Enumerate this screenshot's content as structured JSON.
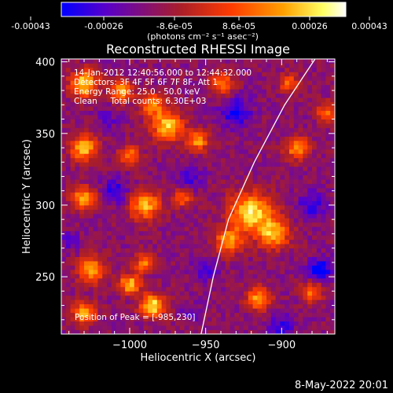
{
  "title": "Reconstructed RHESSI Image",
  "footer_date": "8-May-2022 20:01",
  "info_lines": [
    "14-Jan-2012 12:40:56.000 to 12:44:32.000",
    "Detectors: 3F 4F 5F 6F 7F 8F, Att 1",
    "Energy Range: 25.0 - 50.0 keV",
    "Clean     Total counts: 6.30E+03"
  ],
  "peak_label": "Position of Peak = [-985,230]",
  "colorbar": {
    "ticks": [
      "-0.00043",
      "-0.00026",
      "-8.6e-05",
      "8.6e-05",
      "0.00026",
      "0.00043"
    ],
    "unit_label": "(photons cm⁻² s⁻¹ asec⁻²)",
    "colors": [
      "#0000ff",
      "#5a00c8",
      "#aa1e28",
      "#ff3c00",
      "#ffa000",
      "#ffff64",
      "#ffffff"
    ]
  },
  "chart_data": {
    "type": "heatmap",
    "title": "Reconstructed RHESSI Image",
    "xlabel": "Heliocentric X (arcsec)",
    "ylabel": "Heliocentric Y (arcsec)",
    "xlim": [
      -1045,
      -865
    ],
    "ylim": [
      210,
      402
    ],
    "zlim": [
      -0.00043,
      0.00043
    ],
    "xticks": [
      -1000,
      -950,
      -900
    ],
    "xticklabels": [
      "−1000",
      "−950",
      "−900"
    ],
    "yticks": [
      250,
      300,
      350,
      400
    ],
    "yticklabels": [
      "250",
      "300",
      "350",
      "400"
    ],
    "grid_size": [
      60,
      64
    ],
    "grid_cell_arcsec": 3,
    "peak": [
      -985,
      230
    ],
    "limb_curve": [
      [
        -953,
        210
      ],
      [
        -945,
        250
      ],
      [
        -935,
        290
      ],
      [
        -918,
        330
      ],
      [
        -898,
        370
      ],
      [
        -878,
        402
      ]
    ],
    "hot_spots": [
      {
        "x": -1030,
        "y": 385,
        "z": 0.0004,
        "r": 9
      },
      {
        "x": -1005,
        "y": 380,
        "z": 0.0003,
        "r": 7
      },
      {
        "x": -985,
        "y": 370,
        "z": 0.00026,
        "r": 8
      },
      {
        "x": -975,
        "y": 355,
        "z": 0.00038,
        "r": 10
      },
      {
        "x": -1030,
        "y": 340,
        "z": 0.00034,
        "r": 9
      },
      {
        "x": -1000,
        "y": 335,
        "z": 0.00022,
        "r": 7
      },
      {
        "x": -955,
        "y": 345,
        "z": 0.00028,
        "r": 7
      },
      {
        "x": -1030,
        "y": 305,
        "z": 0.0003,
        "r": 8
      },
      {
        "x": -990,
        "y": 300,
        "z": 0.00032,
        "r": 10
      },
      {
        "x": -965,
        "y": 305,
        "z": 0.0002,
        "r": 6
      },
      {
        "x": -920,
        "y": 295,
        "z": 0.0004,
        "r": 14
      },
      {
        "x": -905,
        "y": 280,
        "z": 0.00032,
        "r": 10
      },
      {
        "x": -935,
        "y": 275,
        "z": 0.00028,
        "r": 9
      },
      {
        "x": -1025,
        "y": 255,
        "z": 0.0003,
        "r": 9
      },
      {
        "x": -990,
        "y": 260,
        "z": 0.00022,
        "r": 7
      },
      {
        "x": -1000,
        "y": 245,
        "z": 0.00034,
        "r": 7
      },
      {
        "x": -985,
        "y": 230,
        "z": 0.00043,
        "r": 8
      },
      {
        "x": -1030,
        "y": 225,
        "z": 0.0003,
        "r": 8
      },
      {
        "x": -915,
        "y": 235,
        "z": 0.0003,
        "r": 8
      },
      {
        "x": -880,
        "y": 240,
        "z": 0.00022,
        "r": 7
      },
      {
        "x": -890,
        "y": 340,
        "z": 0.00026,
        "r": 8
      },
      {
        "x": -870,
        "y": 365,
        "z": 0.0002,
        "r": 7
      },
      {
        "x": -895,
        "y": 385,
        "z": 0.00018,
        "r": 7
      },
      {
        "x": -940,
        "y": 385,
        "z": 0.00024,
        "r": 8
      }
    ],
    "cold_spots": [
      {
        "x": -1010,
        "y": 310,
        "z": -0.0003,
        "r": 9
      },
      {
        "x": -960,
        "y": 320,
        "z": -0.00026,
        "r": 8
      },
      {
        "x": -930,
        "y": 365,
        "z": -0.00034,
        "r": 10
      },
      {
        "x": -880,
        "y": 300,
        "z": -0.0003,
        "r": 9
      },
      {
        "x": -875,
        "y": 255,
        "z": -0.0004,
        "r": 8
      },
      {
        "x": -1040,
        "y": 275,
        "z": -0.00022,
        "r": 7
      },
      {
        "x": -950,
        "y": 255,
        "z": -0.00024,
        "r": 8
      },
      {
        "x": -1015,
        "y": 360,
        "z": -0.00022,
        "r": 7
      },
      {
        "x": -900,
        "y": 215,
        "z": -0.0003,
        "r": 8
      },
      {
        "x": -960,
        "y": 225,
        "z": -0.0002,
        "r": 7
      }
    ]
  }
}
